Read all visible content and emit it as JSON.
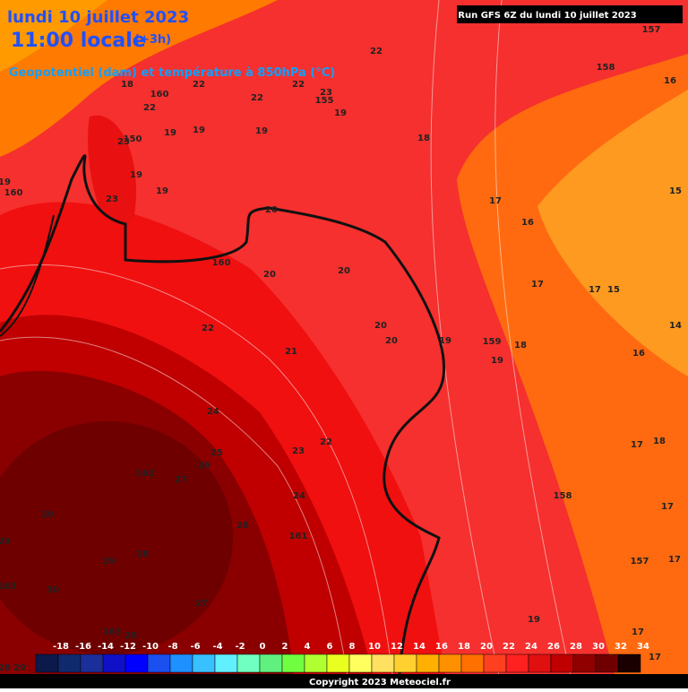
{
  "header": {
    "date": "lundi 10 juillet 2023",
    "time": "11:00 locale",
    "offset": "(+3h)",
    "subtitle": "Geopotentiel (dam) et température à 850hPa (°C)",
    "run": "Run GFS 6Z du lundi 10 juillet 2023"
  },
  "footer": {
    "copyright": "Copyright 2023 Meteociel.fr"
  },
  "legend": {
    "values": [
      -18,
      -16,
      -14,
      -12,
      -10,
      -8,
      -6,
      -4,
      -2,
      0,
      2,
      4,
      6,
      8,
      10,
      12,
      14,
      16,
      18,
      20,
      22,
      24,
      26,
      28,
      30,
      32,
      34
    ],
    "colors": [
      "#0b1a4a",
      "#102a6e",
      "#1a2f9a",
      "#1010c8",
      "#0000ff",
      "#1a50f0",
      "#1e90ff",
      "#38c0ff",
      "#60f0ff",
      "#70ffc0",
      "#60f080",
      "#70ff40",
      "#b0ff30",
      "#e8ff20",
      "#ffff60",
      "#ffe060",
      "#ffd030",
      "#ffb000",
      "#ff9000",
      "#ff7000",
      "#ff4020",
      "#ff2020",
      "#e01010",
      "#c00000",
      "#900000",
      "#700000",
      "#1a0000"
    ]
  },
  "map_labels": [
    "22",
    "157",
    "158",
    "16",
    "18",
    "160",
    "22",
    "22",
    "22",
    "23",
    "155",
    "19",
    "22",
    "19",
    "19",
    "19",
    "18",
    "150",
    "23",
    "19",
    "19",
    "160",
    "19",
    "23",
    "17",
    "16",
    "15",
    "20",
    "160",
    "20",
    "20",
    "17",
    "17",
    "15",
    "22",
    "20",
    "20",
    "19",
    "159",
    "18",
    "21",
    "19",
    "16",
    "14",
    "24",
    "22",
    "23",
    "25",
    "26",
    "162",
    "27",
    "17",
    "18",
    "24",
    "158",
    "17",
    "29",
    "28",
    "161",
    "29",
    "28",
    "157",
    "17",
    "29",
    "163",
    "30",
    "27",
    "19",
    "163",
    "28",
    "17",
    "29",
    "28",
    "17"
  ]
}
